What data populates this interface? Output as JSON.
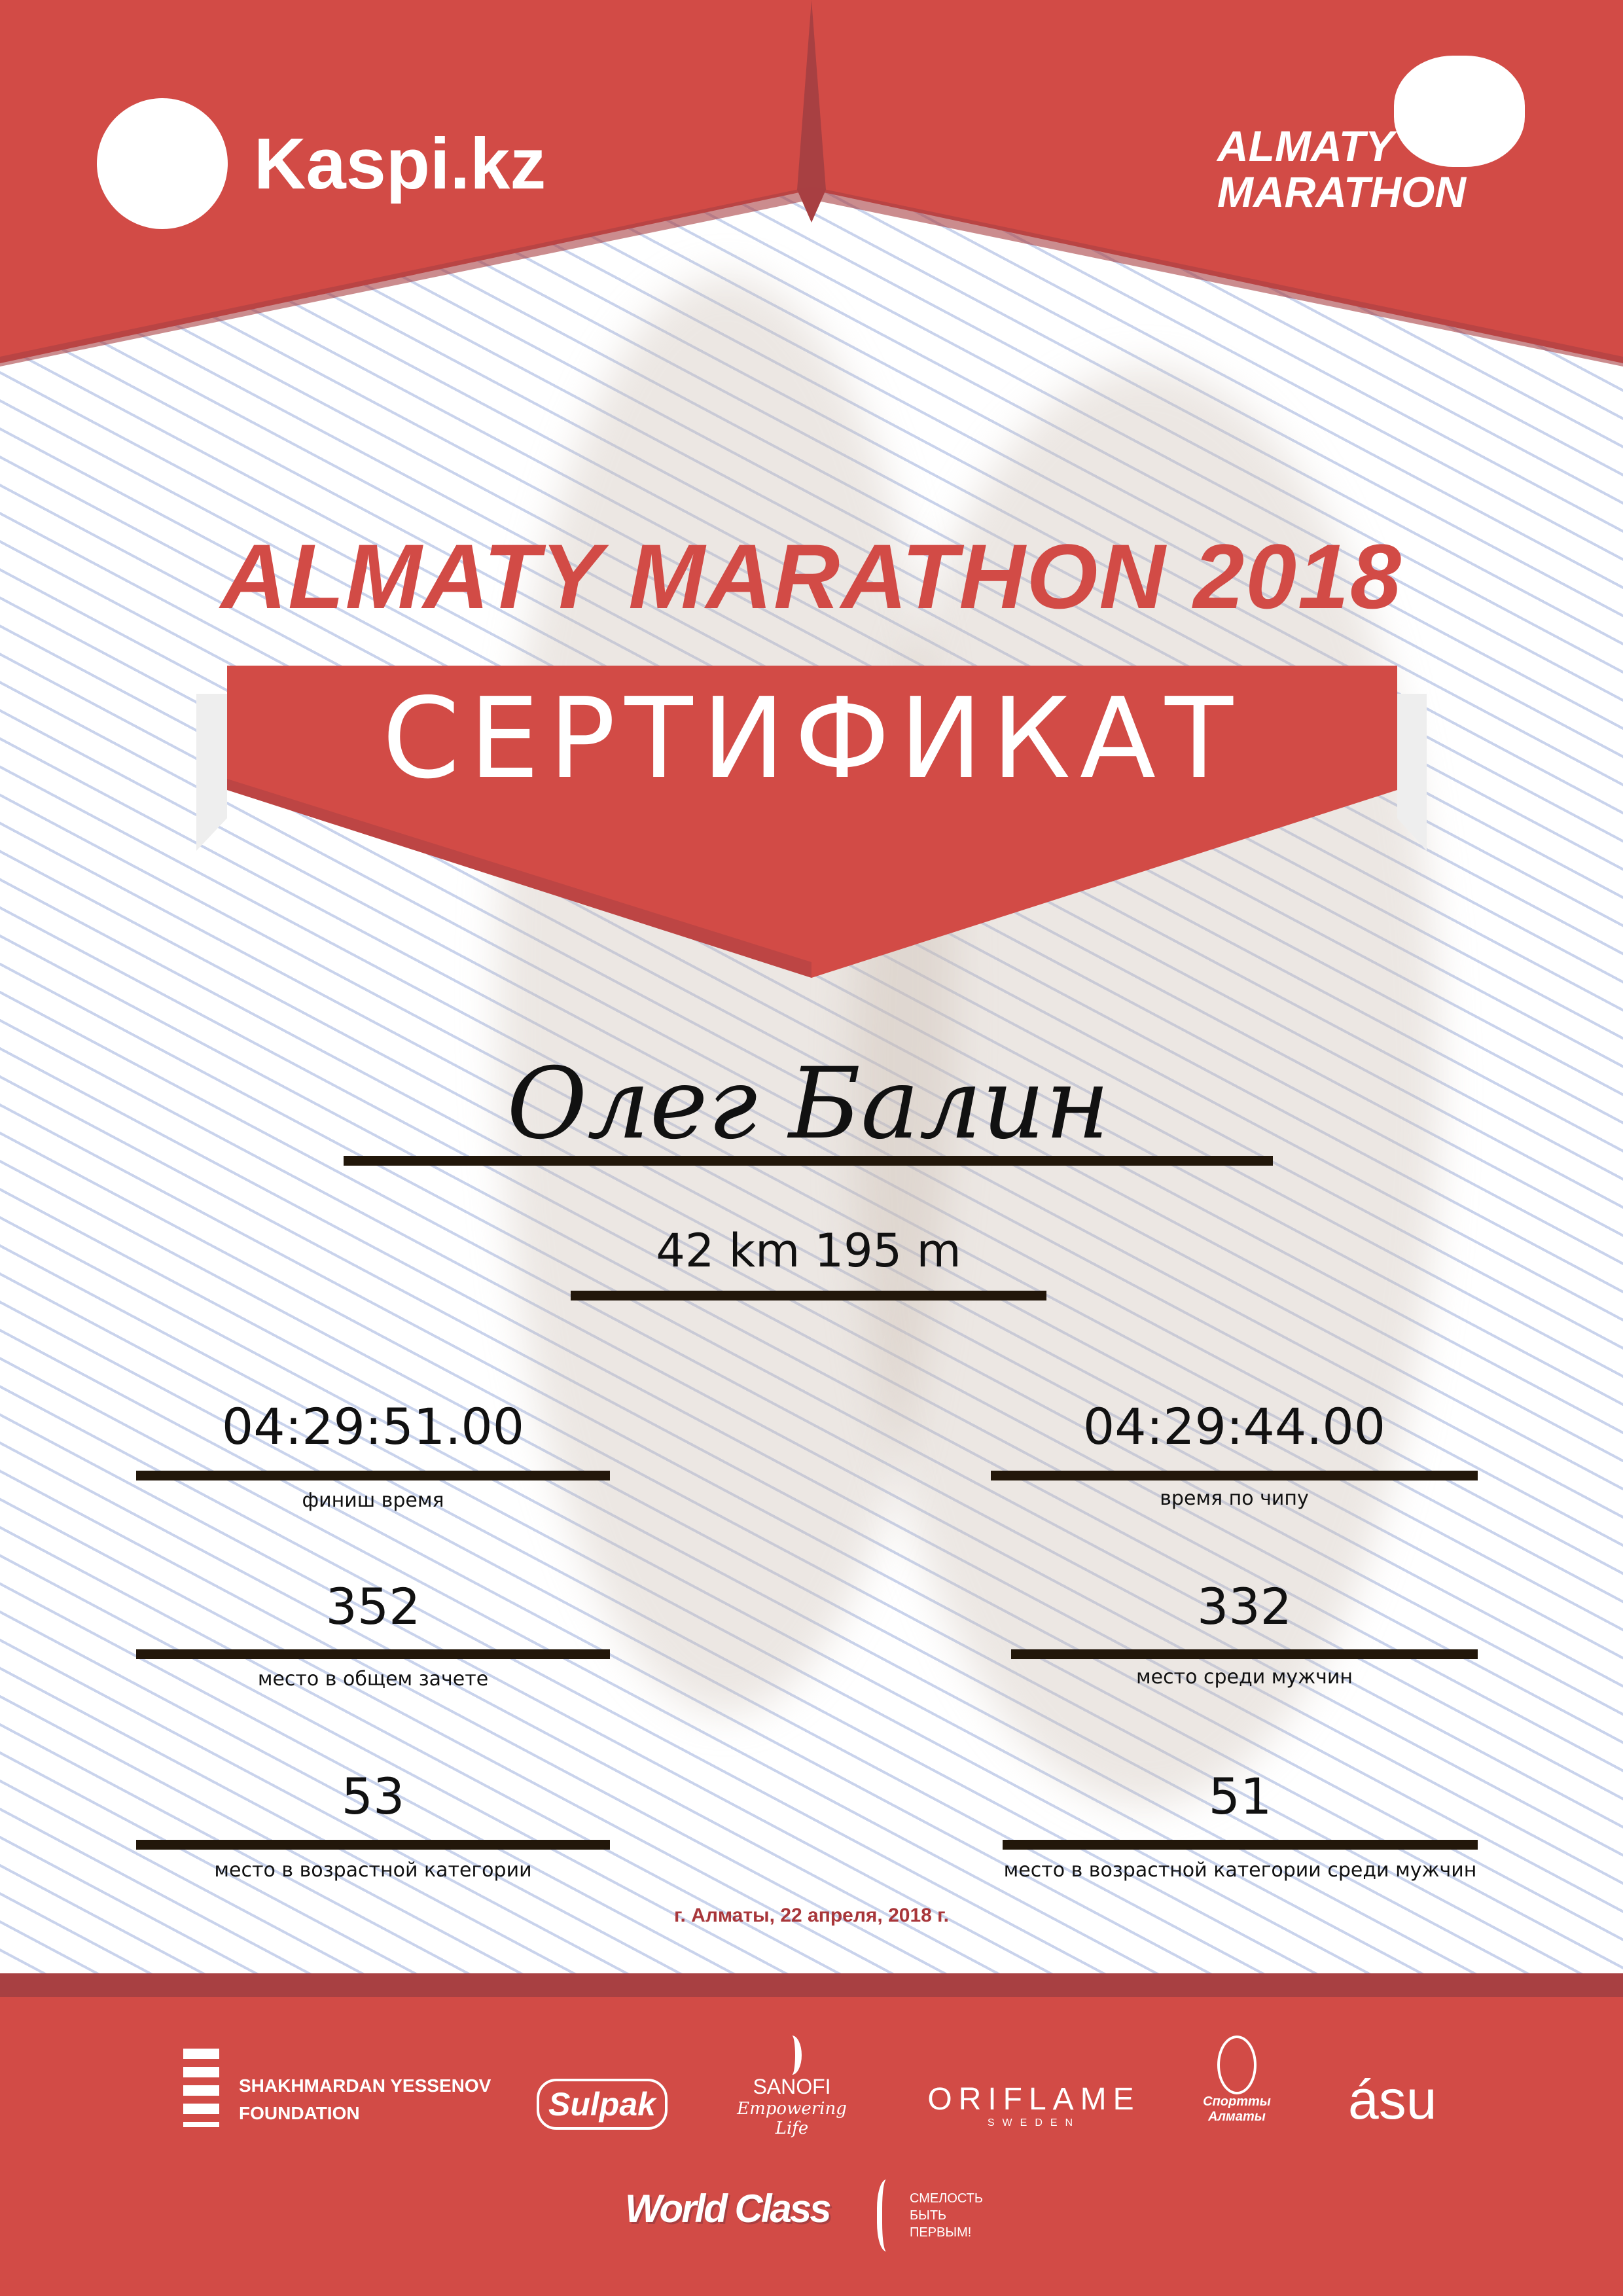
{
  "header": {
    "sponsor_logo": "Kaspi.kz",
    "event_logo_line1": "ALMATY",
    "event_logo_line2": "MARATHON"
  },
  "title": "ALMATY MARATHON 2018",
  "banner": "СЕРТИФИКАТ",
  "participant_name": "Олег Балин",
  "distance": "42 km 195 m",
  "stats": [
    {
      "value": "04:29:51.00",
      "label": "финиш время"
    },
    {
      "value": "04:29:44.00",
      "label": "время по чипу"
    },
    {
      "value": "352",
      "label": "место в общем зачете"
    },
    {
      "value": "332",
      "label": "место среди мужчин"
    },
    {
      "value": "53",
      "label": "место в возрастной категории"
    },
    {
      "value": "51",
      "label": "место в возрастной категории среди мужчин"
    }
  ],
  "date": "г. Алматы, 22 апреля, 2018 г.",
  "colors": {
    "red": "#d24b46",
    "dark_red": "#a84042",
    "line": "#22170a"
  },
  "partners": {
    "yessenov": [
      "SHAKHMARDAN YESSENOV",
      "FOUNDATION"
    ],
    "sulpak": "Sulpak",
    "sanofi": [
      "SANOFI",
      "Empowering Life"
    ],
    "oriflame": [
      "ORIFLAME",
      "SWEDEN"
    ],
    "sport_almaty": [
      "Спортты",
      "Алматы"
    ],
    "asu": "ásu",
    "worldclass": "World Class",
    "smelost": [
      "СМЕЛОСТЬ",
      "БЫТЬ",
      "ПЕРВЫМ!"
    ]
  }
}
